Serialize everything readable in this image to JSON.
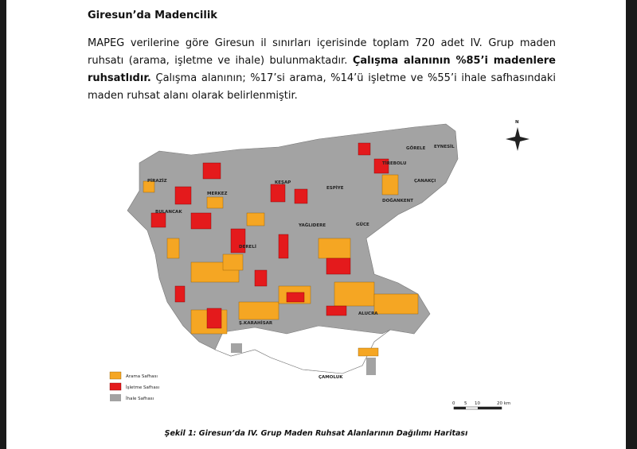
{
  "header": {
    "title": "Giresun’da Madencilik"
  },
  "paragraph": {
    "parts": [
      "MAPEG verilerine  göre Giresun il sınırları içerisinde toplam 720 adet IV. Grup maden ruhsatı (arama, işletme ve ihale) bulunmaktadır. ",
      "Çalışma alanının %85’i madenlere ruhsatlıdır.",
      " Çalışma alanının; %17’si arama, %14’ü işletme ve %55’i ihale safhasındaki maden ruhsat alanı olarak belirlenmiştir."
    ]
  },
  "map": {
    "north": "N",
    "labels": [
      "GÖRELE",
      "EYNESİL",
      "TİREBOLU",
      "ÇANAKÇI",
      "DOĞANKENT",
      "ESPİYE",
      "KEŞAP",
      "MERKEZ",
      "PİRAZİZ",
      "BULANCAK",
      "YAĞLIDERE",
      "GÜCE",
      "DERELİ",
      "Ş.KARAHİSAR",
      "ALUCRA",
      "ÇAMOLUK"
    ],
    "legend": [
      "Arama Safhası",
      "İşletme Safhası",
      "İhale Safhası"
    ],
    "scale": [
      "0",
      "5",
      "10",
      "20 km"
    ]
  },
  "caption": "Şekil 1: Giresun’da IV. Grup Maden Ruhsat Alanlarının Dağılımı Haritası"
}
